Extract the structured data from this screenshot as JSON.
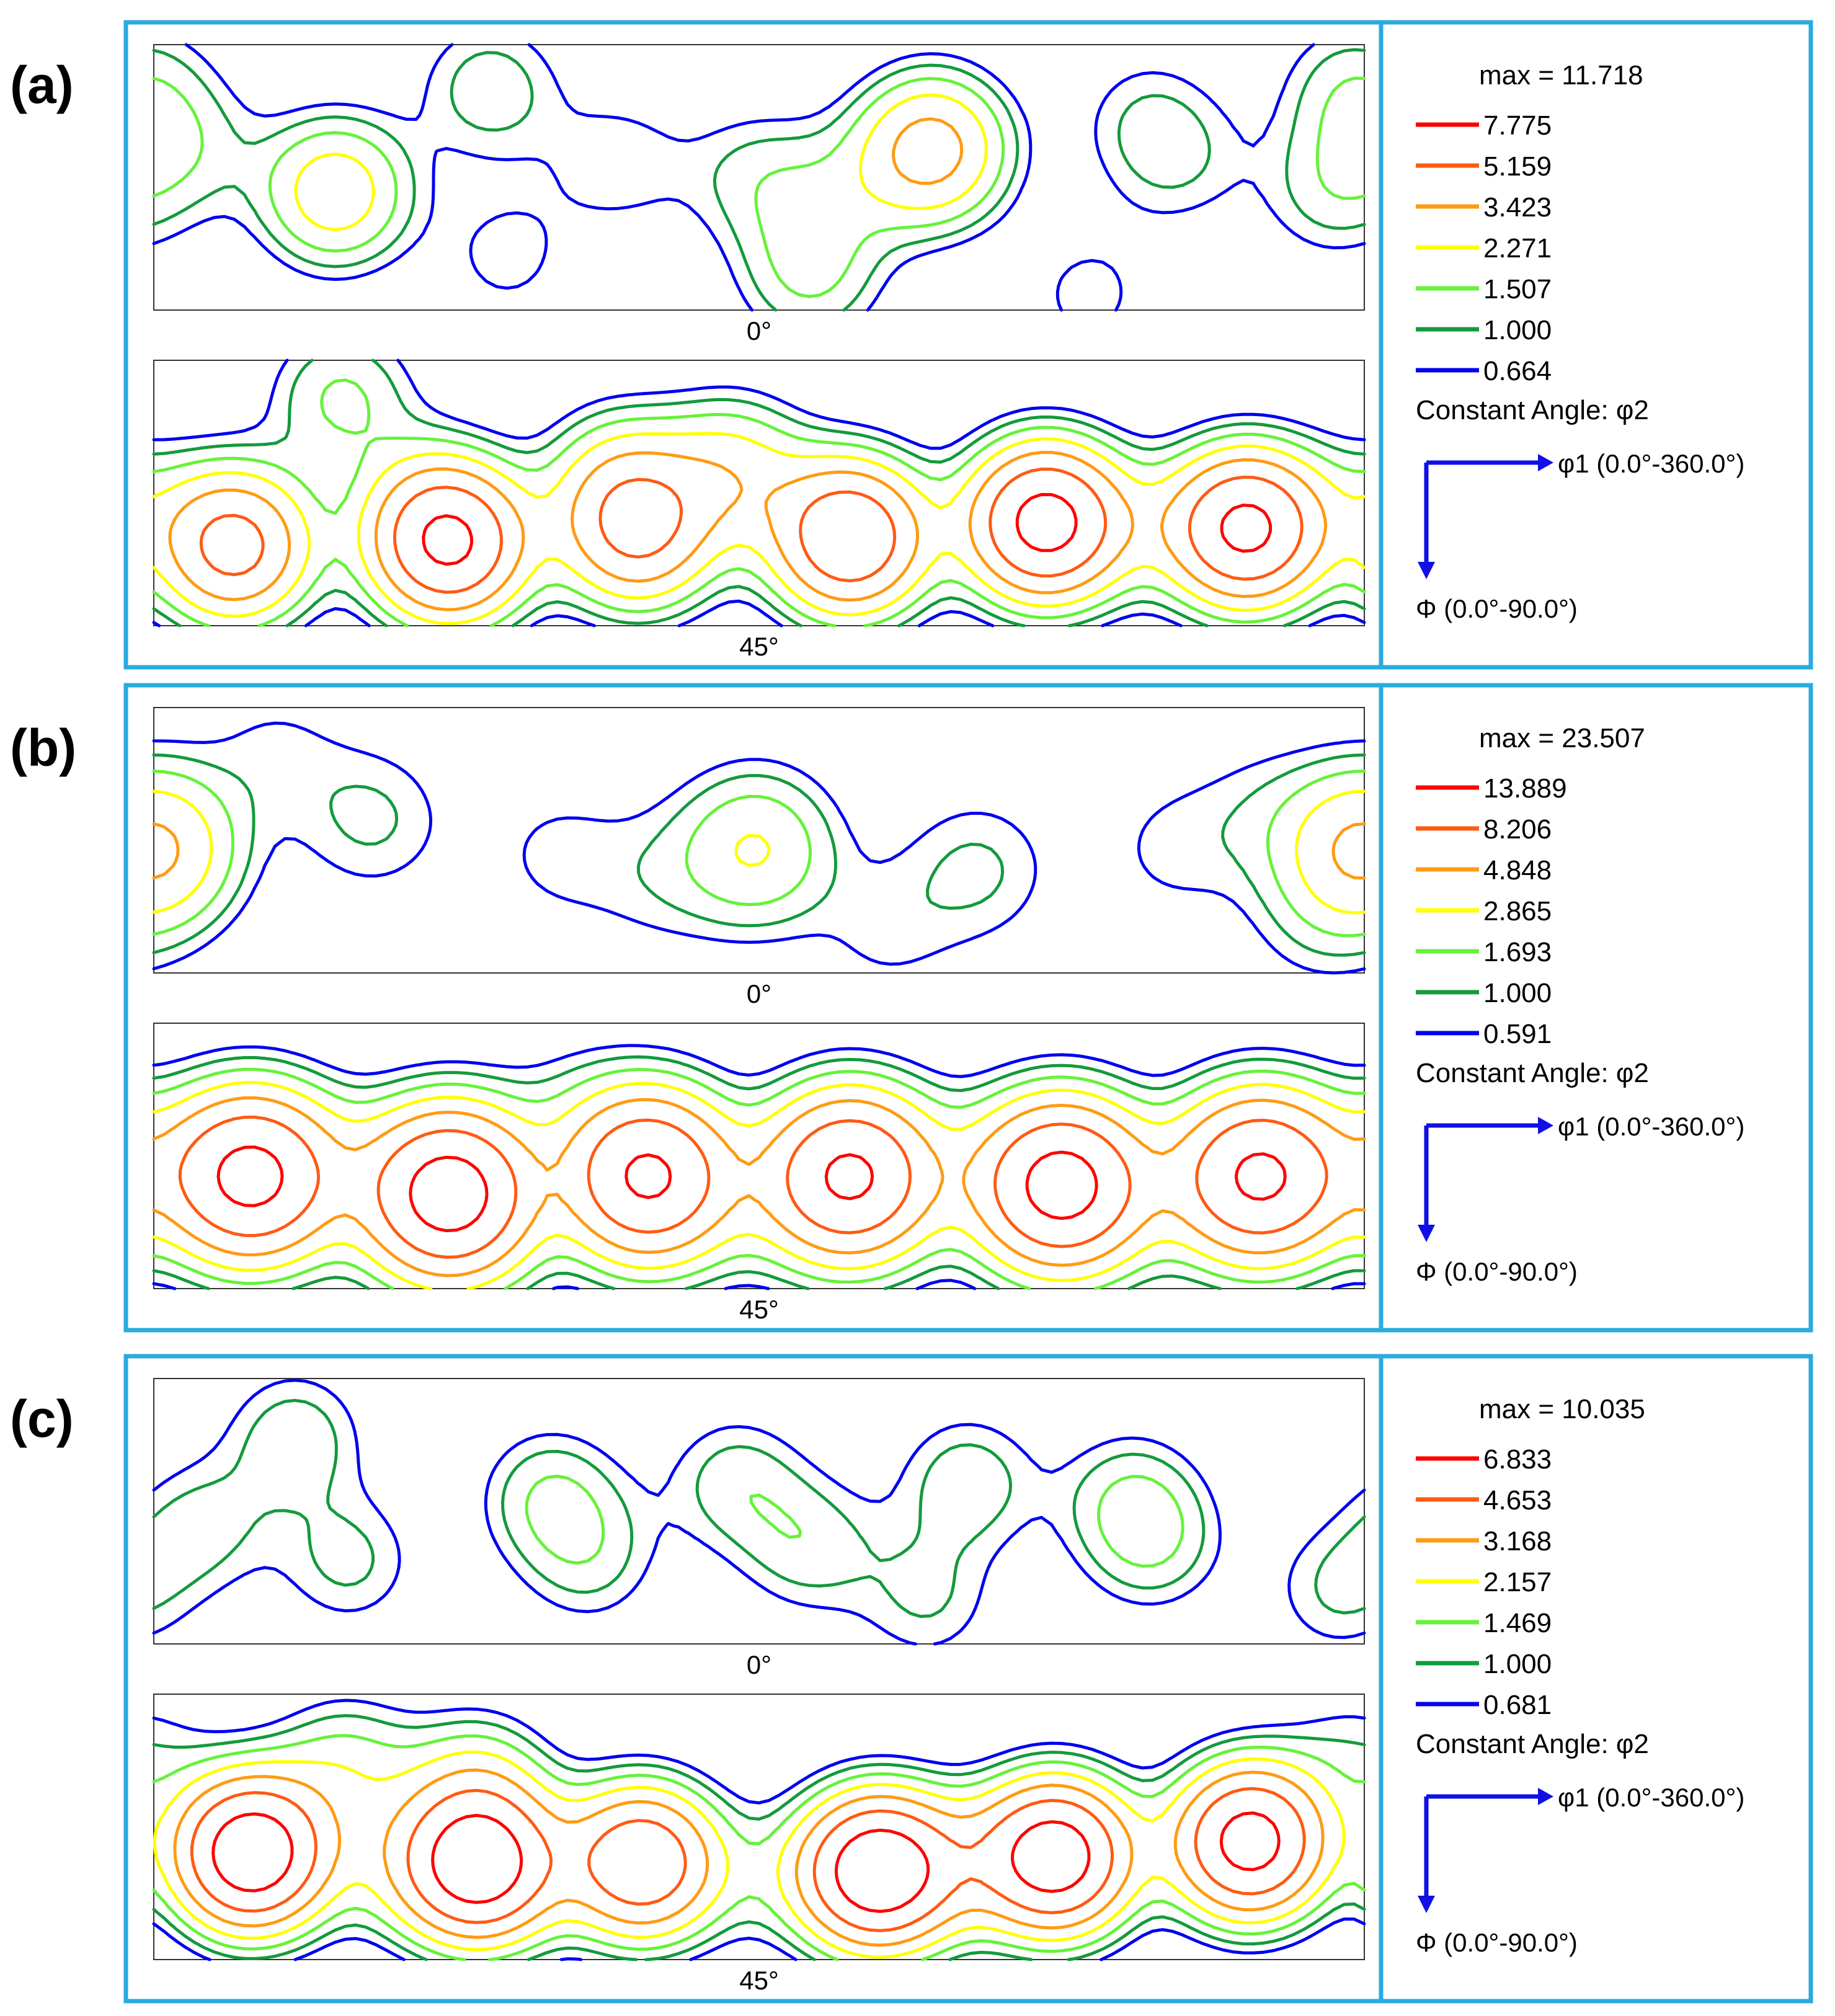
{
  "frame_color": "#29ABE2",
  "level_colors": [
    "#FF0000",
    "#FF5A14",
    "#FF9B14",
    "#FFFF00",
    "#66F23A",
    "#149A3C",
    "#0000F0"
  ],
  "chart_data": [
    {
      "type": "contour",
      "panel_label": "(a)",
      "max_label": "max = 11.718",
      "levels": [
        "7.775",
        "5.159",
        "3.423",
        "2.271",
        "1.507",
        "1.000",
        "0.664"
      ],
      "constant_angle": "Constant Angle: φ2",
      "x_axis": "φ1 (0.0°-360.0°)",
      "y_axis": "Φ (0.0°-90.0°)",
      "sections": [
        {
          "label": "0°",
          "peaks": [
            [
              10,
              35,
              1.0
            ],
            [
              54,
              50,
              3.0
            ],
            [
              100,
              15,
              1.3
            ],
            [
              105,
              72,
              0.8
            ],
            [
              138,
              40,
              0.9
            ],
            [
              178,
              45,
              1.0
            ],
            [
              195,
              78,
              1.5
            ],
            [
              200,
              52,
              0.8
            ],
            [
              225,
              40,
              0.7
            ],
            [
              232,
              35,
              3.5
            ],
            [
              295,
              25,
              0.8
            ],
            [
              305,
              40,
              0.8
            ],
            [
              278,
              85,
              0.8
            ],
            [
              350,
              50,
              1.1
            ],
            [
              356,
              15,
              1.2
            ]
          ]
        },
        {
          "label": "45°",
          "peaks": [
            [
              24,
              63,
              6.0
            ],
            [
              56,
              13,
              1.6
            ],
            [
              80,
              50,
              1.0
            ],
            [
              88,
              62,
              8.0
            ],
            [
              138,
              40,
              1.8
            ],
            [
              144,
              58,
              5.2
            ],
            [
              172,
              38,
              2.6
            ],
            [
              207,
              60,
              7.5
            ],
            [
              265,
              55,
              9.0
            ],
            [
              294,
              56,
              0.8
            ],
            [
              325,
              57,
              8.5
            ],
            [
              358,
              48,
              0.8
            ]
          ]
        }
      ]
    },
    {
      "type": "contour",
      "panel_label": "(b)",
      "max_label": "max = 23.507",
      "levels": [
        "13.889",
        "8.206",
        "4.848",
        "2.865",
        "1.693",
        "1.000",
        "0.591"
      ],
      "constant_angle": "Constant Angle: φ2",
      "x_axis": "φ1 (0.0°-360.0°)",
      "y_axis": "Φ (0.0°-90.0°)",
      "sections": [
        {
          "label": "0°",
          "peaks": [
            [
              0,
              48,
              2.5
            ],
            [
              36,
              17,
              0.7
            ],
            [
              65,
              38,
              1.1
            ],
            [
              120,
              50,
              0.7
            ],
            [
              150,
              58,
              0.7
            ],
            [
              179,
              48,
              2.9
            ],
            [
              245,
              55,
              1.1
            ],
            [
              218,
              75,
              0.7
            ],
            [
              303,
              48,
              0.7
            ],
            [
              330,
              36,
              0.7
            ],
            [
              360,
              48,
              2.8
            ],
            [
              346,
              72,
              0.7
            ]
          ]
        },
        {
          "label": "45°",
          "peaks": [
            [
              1,
              52,
              0.9
            ],
            [
              29,
              52,
              16.0
            ],
            [
              58,
              50,
              1.2
            ],
            [
              88,
              58,
              18.0
            ],
            [
              124,
              32,
              0.7
            ],
            [
              147,
              52,
              15.0
            ],
            [
              180,
              58,
              1.1
            ],
            [
              207,
              52,
              15.0
            ],
            [
              240,
              50,
              1.1
            ],
            [
              270,
              55,
              17.0
            ],
            [
              301,
              56,
              1.1
            ],
            [
              329,
              52,
              15.0
            ],
            [
              360,
              48,
              1.1
            ]
          ]
        }
      ]
    },
    {
      "type": "contour",
      "panel_label": "(c)",
      "max_label": "max = 10.035",
      "levels": [
        "6.833",
        "4.653",
        "3.168",
        "2.157",
        "1.469",
        "1.000",
        "0.681"
      ],
      "constant_angle": "Constant Angle: φ2",
      "x_axis": "φ1 (0.0°-360.0°)",
      "y_axis": "Φ (0.0°-90.0°)",
      "sections": [
        {
          "label": "0°",
          "peaks": [
            [
              14,
              50,
              1.1
            ],
            [
              42,
              20,
              1.3
            ],
            [
              58,
              62,
              1.1
            ],
            [
              118,
              40,
              1.4
            ],
            [
              130,
              62,
              1.0
            ],
            [
              173,
              35,
              1.2
            ],
            [
              195,
              57,
              1.2
            ],
            [
              230,
              75,
              1.0
            ],
            [
              242,
              35,
              1.3
            ],
            [
              290,
              40,
              1.1
            ],
            [
              297,
              56,
              1.2
            ],
            [
              352,
              72,
              1.0
            ]
          ]
        },
        {
          "label": "45°",
          "peaks": [
            [
              29,
              54,
              9.0
            ],
            [
              57,
              25,
              1.6
            ],
            [
              73,
              58,
              1.2
            ],
            [
              96,
              30,
              1.7
            ],
            [
              97,
              58,
              8.5
            ],
            [
              145,
              57,
              6.5
            ],
            [
              181,
              62,
              0.7
            ],
            [
              215,
              60,
              9.0
            ],
            [
              238,
              58,
              1.3
            ],
            [
              268,
              55,
              8.5
            ],
            [
              326,
              50,
              8.0
            ],
            [
              357,
              20,
              0.8
            ]
          ]
        }
      ]
    }
  ]
}
